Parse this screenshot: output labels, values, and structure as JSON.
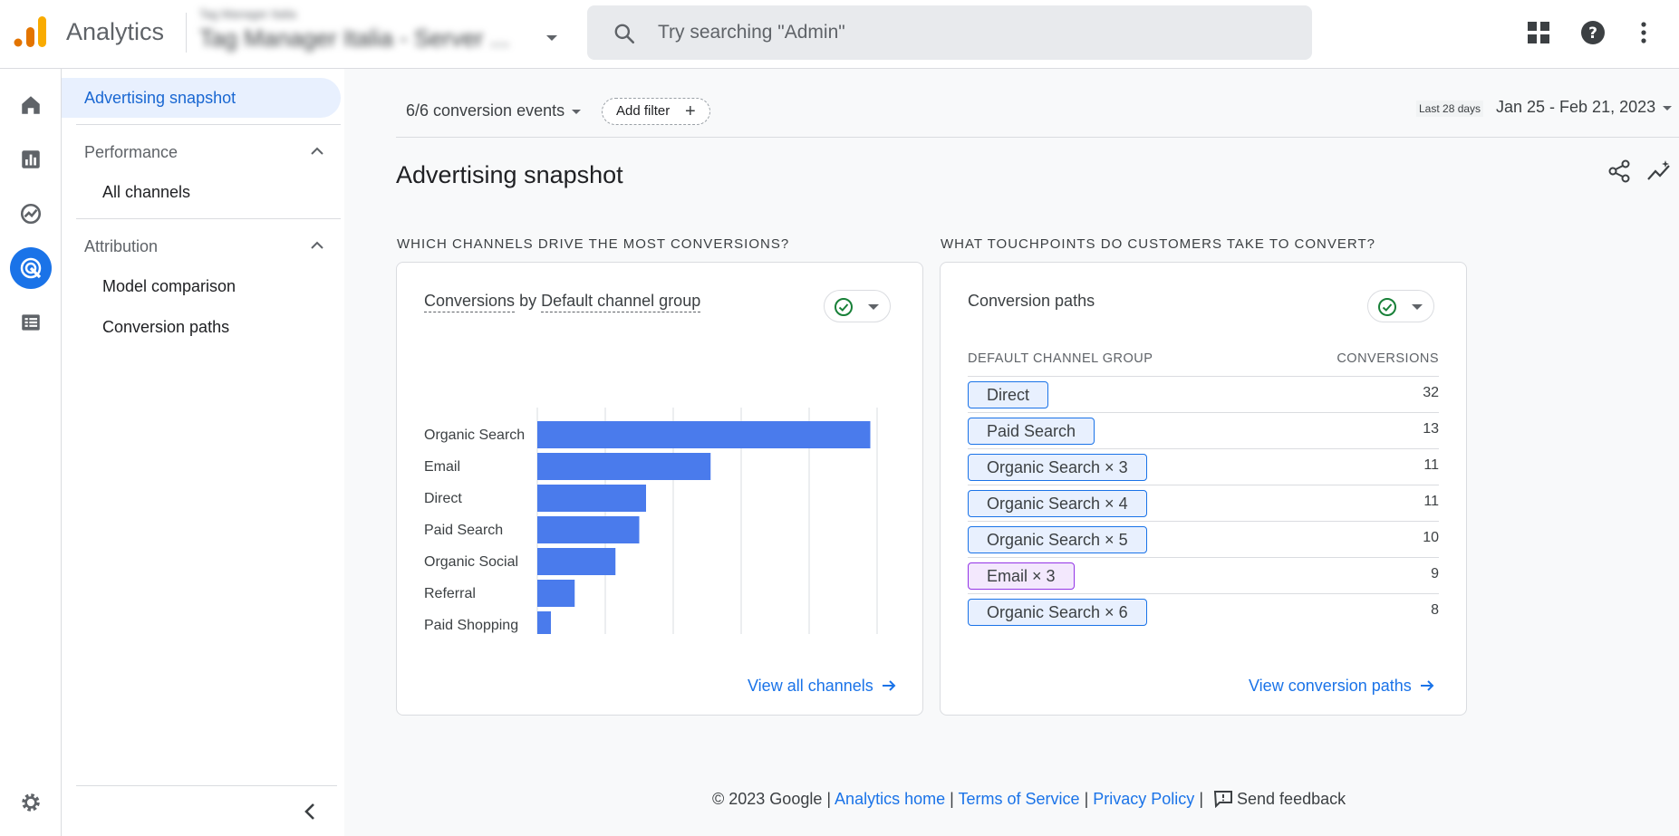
{
  "header": {
    "app_title": "Analytics",
    "property_account": "Tag Manager Italia",
    "property_name": "Tag Manager Italia - Server ...",
    "search_placeholder": "Try searching \"Admin\""
  },
  "subnav": {
    "snapshot": "Advertising snapshot",
    "performance": "Performance",
    "all_channels": "All channels",
    "attribution": "Attribution",
    "model_comparison": "Model comparison",
    "conversion_paths": "Conversion paths"
  },
  "toolbar": {
    "events": "6/6 conversion events",
    "add_filter": "Add filter",
    "date_label": "Last 28 days",
    "date_range": "Jan 25 - Feb 21, 2023"
  },
  "page": {
    "title": "Advertising snapshot",
    "left_section": "WHICH CHANNELS DRIVE THE MOST CONVERSIONS?",
    "right_section": "WHAT TOUCHPOINTS DO CUSTOMERS TAKE TO CONVERT?"
  },
  "left_card": {
    "title_metric": "Conversions",
    "title_by": "by",
    "title_dim": "Default channel group",
    "link": "View all channels"
  },
  "chart_data": {
    "type": "bar",
    "orientation": "horizontal",
    "categories": [
      "Organic Search",
      "Email",
      "Direct",
      "Paid Search",
      "Organic Social",
      "Referral",
      "Paid Shopping"
    ],
    "values": [
      98,
      51,
      32,
      30,
      23,
      11,
      4
    ],
    "xlim": [
      0,
      100
    ],
    "ticks": [
      0,
      20,
      40,
      60,
      80,
      100
    ],
    "grid": true,
    "bar_color": "#4a7bec"
  },
  "right_card": {
    "title": "Conversion paths",
    "col_group": "DEFAULT CHANNEL GROUP",
    "col_conv": "CONVERSIONS",
    "rows": [
      {
        "path": "Direct",
        "value": "32"
      },
      {
        "path": "Paid Search",
        "value": "13"
      },
      {
        "path": "Organic Search × 3",
        "value": "11"
      },
      {
        "path": "Organic Search × 4",
        "value": "11"
      },
      {
        "path": "Organic Search × 5",
        "value": "10"
      },
      {
        "path": "Email × 3",
        "value": "9"
      },
      {
        "path": "Organic Search × 6",
        "value": "8"
      }
    ],
    "link": "View conversion paths"
  },
  "footer": {
    "copyright": "© 2023 Google |",
    "analytics_home": "Analytics home",
    "sep": "|",
    "terms": "Terms of Service",
    "privacy": "Privacy Policy",
    "sep2": "|",
    "feedback": "Send feedback"
  }
}
